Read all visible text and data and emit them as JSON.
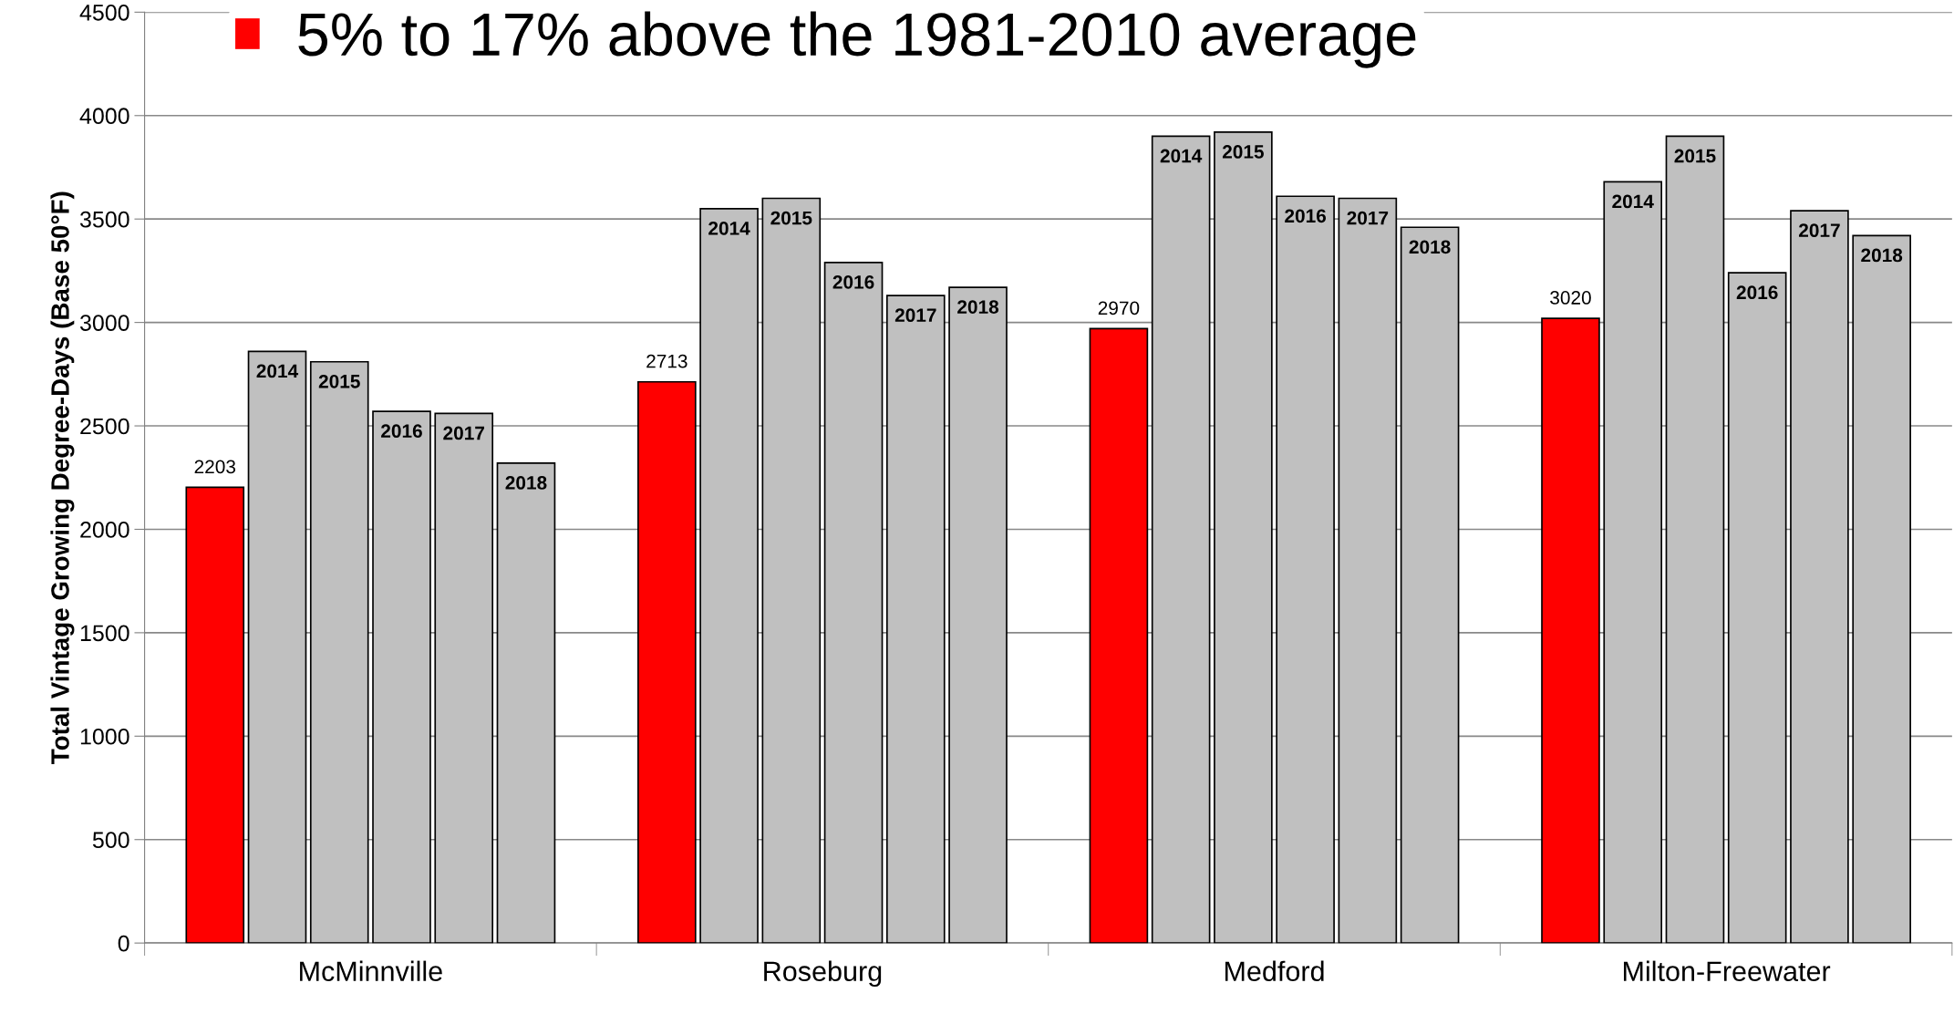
{
  "chart_data": {
    "type": "bar",
    "ylabel": "Total Vintage Growing Degree-Days (Base 50°F)",
    "categories": [
      "McMinnville",
      "Roseburg",
      "Medford",
      "Milton-Freewater"
    ],
    "series": [
      {
        "name": "5% to 17% above the 1981-2010 average",
        "color": "#ff0000",
        "values": [
          2203,
          2713,
          2970,
          3020
        ],
        "value_labels": [
          "2203",
          "2713",
          "2970",
          "3020"
        ]
      },
      {
        "name": "2014",
        "color": "#c0c0c0",
        "values": [
          2860,
          3550,
          3900,
          3680
        ]
      },
      {
        "name": "2015",
        "color": "#c0c0c0",
        "values": [
          2810,
          3600,
          3920,
          3900
        ]
      },
      {
        "name": "2016",
        "color": "#c0c0c0",
        "values": [
          2570,
          3290,
          3610,
          3240
        ]
      },
      {
        "name": "2017",
        "color": "#c0c0c0",
        "values": [
          2560,
          3130,
          3600,
          3540
        ]
      },
      {
        "name": "2018",
        "color": "#c0c0c0",
        "values": [
          2320,
          3170,
          3460,
          3420
        ]
      }
    ],
    "ylim": [
      0,
      4500
    ],
    "yticks": [
      0,
      500,
      1000,
      1500,
      2000,
      2500,
      3000,
      3500,
      4000,
      4500
    ],
    "grid": "y",
    "legend": "top left"
  }
}
